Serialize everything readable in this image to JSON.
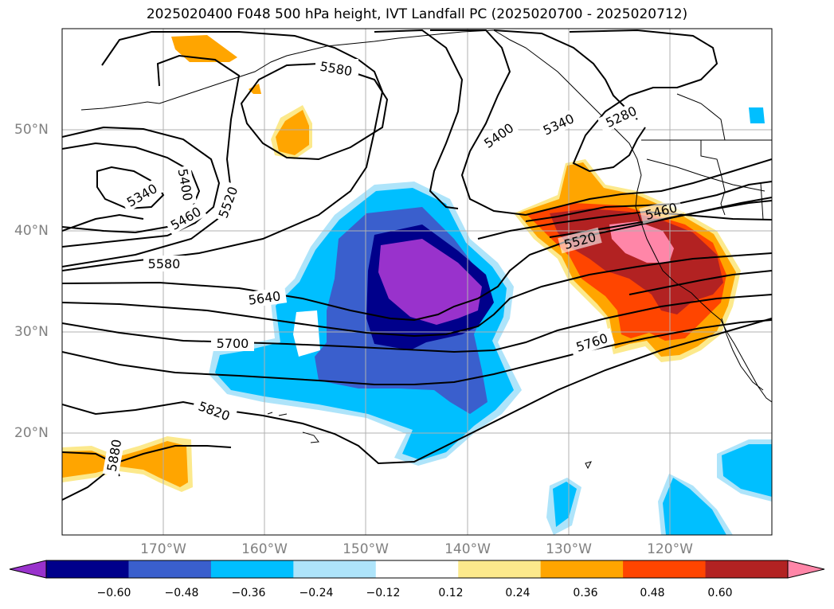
{
  "title": "2025020400 F048 500 hPa height, IVT Landfall PC (2025020700 - 2025020712)",
  "lat_labels": [
    "50°N",
    "40°N",
    "30°N",
    "20°N"
  ],
  "lon_labels": [
    "170°W",
    "160°W",
    "150°W",
    "140°W",
    "130°W",
    "120°W"
  ],
  "contour_labels": [
    "5580",
    "5400",
    "5340",
    "5280",
    "5340",
    "5400",
    "5460",
    "5520",
    "5580",
    "5640",
    "5700",
    "5820",
    "5880",
    "5460",
    "5520",
    "5760"
  ],
  "colorbar": {
    "ticks": [
      "−0.60",
      "−0.48",
      "−0.36",
      "−0.24",
      "−0.12",
      "0.12",
      "0.24",
      "0.36",
      "0.48",
      "0.60"
    ],
    "colors": [
      "#9932cc",
      "#00008b",
      "#3a5fcd",
      "#00bfff",
      "#aee4fa",
      "#ffffff",
      "#fce98c",
      "#ffa500",
      "#ff4500",
      "#b22222",
      "#ff86a8"
    ]
  },
  "colors": {
    "coast": "#000000",
    "grid": "#b0b0b0",
    "axis_label": "#808080"
  }
}
